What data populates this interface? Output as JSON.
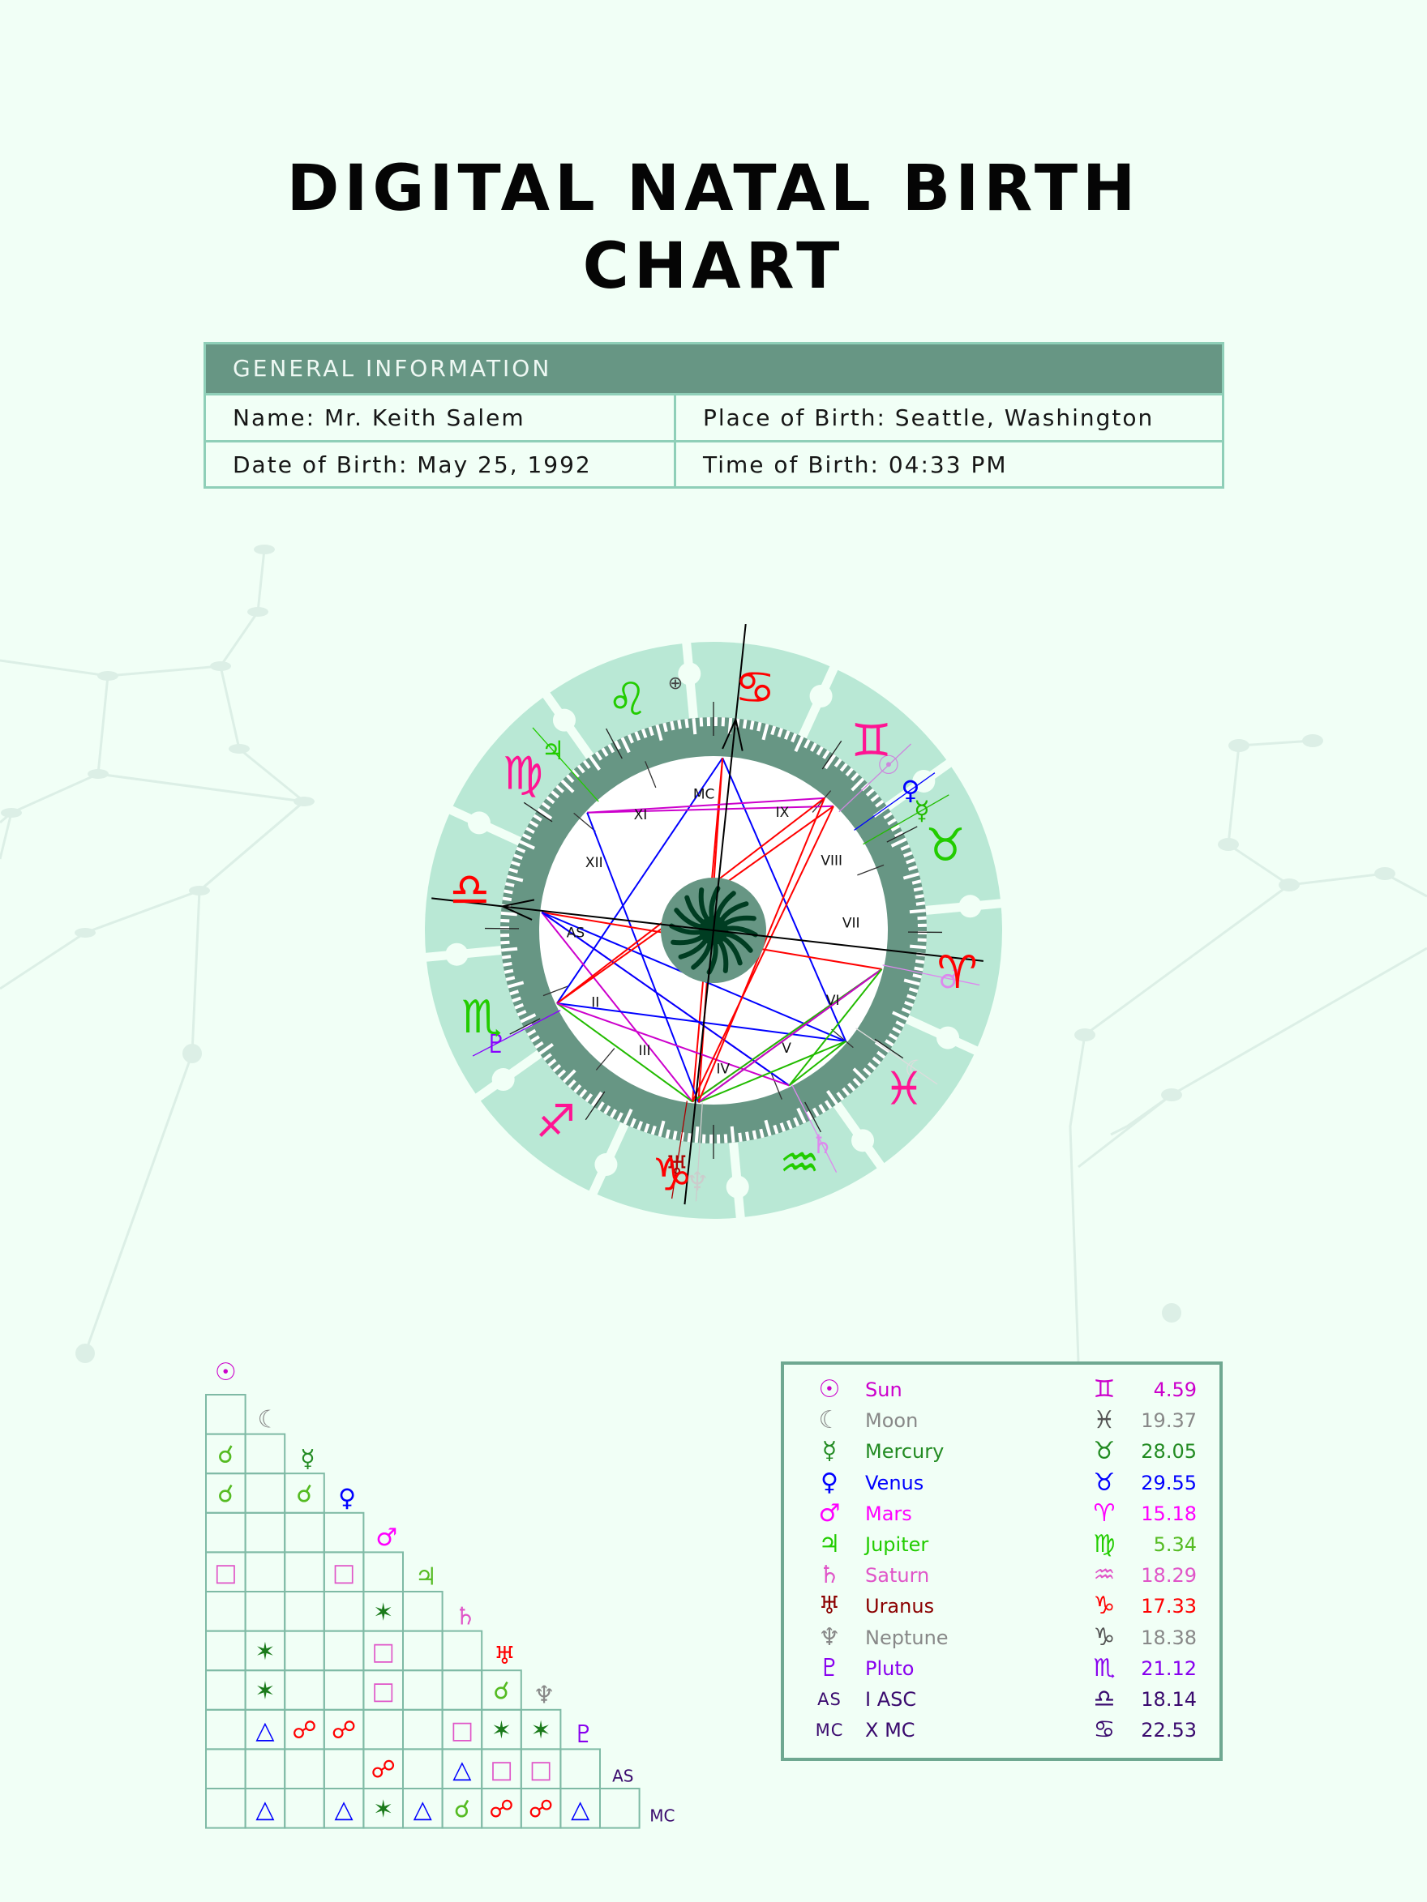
{
  "title": {
    "line1": "DIGITAL NATAL BIRTH",
    "line2": "CHART"
  },
  "general_information": {
    "header": "GENERAL INFORMATION",
    "name": "Name: Mr. Keith Salem",
    "place_of_birth": "Place of Birth: Seattle, Washington",
    "date_of_birth": "Date of Birth: May 25, 1992",
    "time_of_birth": "Time of Birth: 04:33 PM"
  },
  "colors": {
    "page_background": "#f1fff6",
    "sign_ring": "#b9e8d5",
    "degree_band": "#679684",
    "inner_disk": "#ffffff",
    "center_disk": "#679684",
    "sun_glyph": "#003d22",
    "table_header": "#679684",
    "table_border": "#8fcfb8",
    "constellation": "#dcefe6"
  },
  "wheel": {
    "signs": [
      {
        "name": "Aries",
        "glyph": "♈",
        "color": "#ff0000"
      },
      {
        "name": "Taurus",
        "glyph": "♉",
        "color": "#22cc00"
      },
      {
        "name": "Gemini",
        "glyph": "♊",
        "color": "#ff1493"
      },
      {
        "name": "Cancer",
        "glyph": "♋",
        "color": "#ff0000"
      },
      {
        "name": "Leo",
        "glyph": "♌",
        "color": "#22cc00"
      },
      {
        "name": "Virgo",
        "glyph": "♍",
        "color": "#ff1493"
      },
      {
        "name": "Libra",
        "glyph": "♎",
        "color": "#ff0000"
      },
      {
        "name": "Scorpio",
        "glyph": "♏",
        "color": "#22cc00"
      },
      {
        "name": "Sagittarius",
        "glyph": "♐",
        "color": "#ff1493"
      },
      {
        "name": "Capricorn",
        "glyph": "♑",
        "color": "#ff0000"
      },
      {
        "name": "Aquarius",
        "glyph": "♒",
        "color": "#22cc00"
      },
      {
        "name": "Pisces",
        "glyph": "♓",
        "color": "#ff1493"
      }
    ],
    "houses": [
      "AS",
      "II",
      "III",
      "IV",
      "V",
      "VI",
      "VII",
      "VIII",
      "IX",
      "MC",
      "XI",
      "XII"
    ],
    "part_of_fortune_glyph": "⊕",
    "wheel_planets": [
      {
        "name": "Sun",
        "glyph": "☉",
        "color": "#cc88dd"
      },
      {
        "name": "Venus",
        "glyph": "♀",
        "color": "#0000ff"
      },
      {
        "name": "Mercury",
        "glyph": "☿",
        "color": "#22bb00"
      },
      {
        "name": "Mars",
        "glyph": "♂",
        "color": "#dd88ee"
      },
      {
        "name": "Moon",
        "glyph": "☾",
        "color": "#dddddd"
      },
      {
        "name": "Saturn",
        "glyph": "♄",
        "color": "#dd88ee"
      },
      {
        "name": "Uranus",
        "glyph": "♅",
        "color": "#aa0000"
      },
      {
        "name": "Neptune",
        "glyph": "♆",
        "color": "#cccccc"
      },
      {
        "name": "Pluto",
        "glyph": "♇",
        "color": "#8800ff"
      },
      {
        "name": "Jupiter",
        "glyph": "♃",
        "color": "#22cc00"
      }
    ]
  },
  "legend": {
    "rows": [
      {
        "glyph": "☉",
        "name": "Sun",
        "sign": "♊",
        "degree": "4.59",
        "color": "#cc00cc"
      },
      {
        "glyph": "☾",
        "name": "Moon",
        "sign": "♓",
        "degree": "19.37",
        "color": "#888888"
      },
      {
        "glyph": "☿",
        "name": "Mercury",
        "sign": "♉",
        "degree": "28.05",
        "color": "#228b22"
      },
      {
        "glyph": "♀",
        "name": "Venus",
        "sign": "♉",
        "degree": "29.55",
        "color": "#0000ff"
      },
      {
        "glyph": "♂",
        "name": "Mars",
        "sign": "♈",
        "degree": "15.18",
        "color": "#ff00ff"
      },
      {
        "glyph": "♃",
        "name": "Jupiter",
        "sign": "♍",
        "degree": "5.34",
        "color": "#22cc00"
      },
      {
        "glyph": "♄",
        "name": "Saturn",
        "sign": "♒",
        "degree": "18.29",
        "color": "#e055c8"
      },
      {
        "glyph": "♅",
        "name": "Uranus",
        "sign": "♑",
        "degree": "17.33",
        "color": "#8b0000"
      },
      {
        "glyph": "♆",
        "name": "Neptune",
        "sign": "♑",
        "degree": "18.38",
        "color": "#888888"
      },
      {
        "glyph": "♇",
        "name": "Pluto",
        "sign": "♏",
        "degree": "21.12",
        "color": "#8800ee"
      },
      {
        "glyph": "AS",
        "name": "I ASC",
        "sign": "♎",
        "degree": "18.14",
        "color": "#3a0a6e"
      },
      {
        "glyph": "MC",
        "name": "X MC",
        "sign": "♋",
        "degree": "22.53",
        "color": "#3a0a6e"
      }
    ],
    "sign_colors": [
      "#cc00cc",
      "#555555",
      "#228b22",
      "#0000ff",
      "#ff00ff",
      "#22cc00",
      "#e055c8",
      "#ff0000",
      "#555555",
      "#8800ee",
      "#3a0a6e",
      "#3a0a6e"
    ],
    "degree_colors": [
      "#cc00cc",
      "#888888",
      "#228b22",
      "#0000ff",
      "#ff00ff",
      "#55bb22",
      "#e055c8",
      "#ff0000",
      "#888888",
      "#8800ee",
      "#3a0a6e",
      "#3a0a6e"
    ]
  },
  "aspect_grid": {
    "headers": [
      {
        "glyph": "☉",
        "color": "#cc00cc"
      },
      {
        "glyph": "☾",
        "color": "#888888"
      },
      {
        "glyph": "☿",
        "color": "#228b22"
      },
      {
        "glyph": "♀",
        "color": "#0000ff"
      },
      {
        "glyph": "♂",
        "color": "#ff00ff"
      },
      {
        "glyph": "♃",
        "color": "#55bb22"
      },
      {
        "glyph": "♄",
        "color": "#e055c8"
      },
      {
        "glyph": "♅",
        "color": "#ff0000"
      },
      {
        "glyph": "♆",
        "color": "#888888"
      },
      {
        "glyph": "♇",
        "color": "#8800ee"
      },
      {
        "glyph": "AS",
        "color": "#3a0a6e"
      },
      {
        "glyph": "MC",
        "color": "#3a0a6e"
      }
    ],
    "aspect_types": {
      "conjunction": {
        "glyph": "☌",
        "color": "#55bb22"
      },
      "opposition": {
        "glyph": "☍",
        "color": "#ff0000"
      },
      "square": {
        "glyph": "□",
        "color": "#e055c8"
      },
      "trine": {
        "glyph": "△",
        "color": "#0000ff"
      },
      "sextile": {
        "glyph": "✶",
        "color": "#1a7a1a"
      }
    },
    "rows": [
      [],
      [
        ""
      ],
      [
        "conjunction",
        ""
      ],
      [
        "conjunction",
        "",
        "conjunction"
      ],
      [
        "",
        "",
        "",
        ""
      ],
      [
        "square",
        "",
        "",
        "square",
        ""
      ],
      [
        "",
        "",
        "",
        "",
        "sextile",
        ""
      ],
      [
        "",
        "sextile",
        "",
        "",
        "square",
        "",
        ""
      ],
      [
        "",
        "sextile",
        "",
        "",
        "square",
        "",
        "",
        "conjunction"
      ],
      [
        "",
        "trine",
        "opposition",
        "opposition",
        "",
        "",
        "square",
        "sextile",
        "sextile"
      ],
      [
        "",
        "",
        "",
        "",
        "opposition",
        "",
        "trine",
        "square",
        "square",
        ""
      ],
      [
        "",
        "trine",
        "",
        "trine",
        "sextile",
        "trine",
        "conjunction",
        "opposition",
        "opposition",
        "trine",
        ""
      ]
    ]
  }
}
